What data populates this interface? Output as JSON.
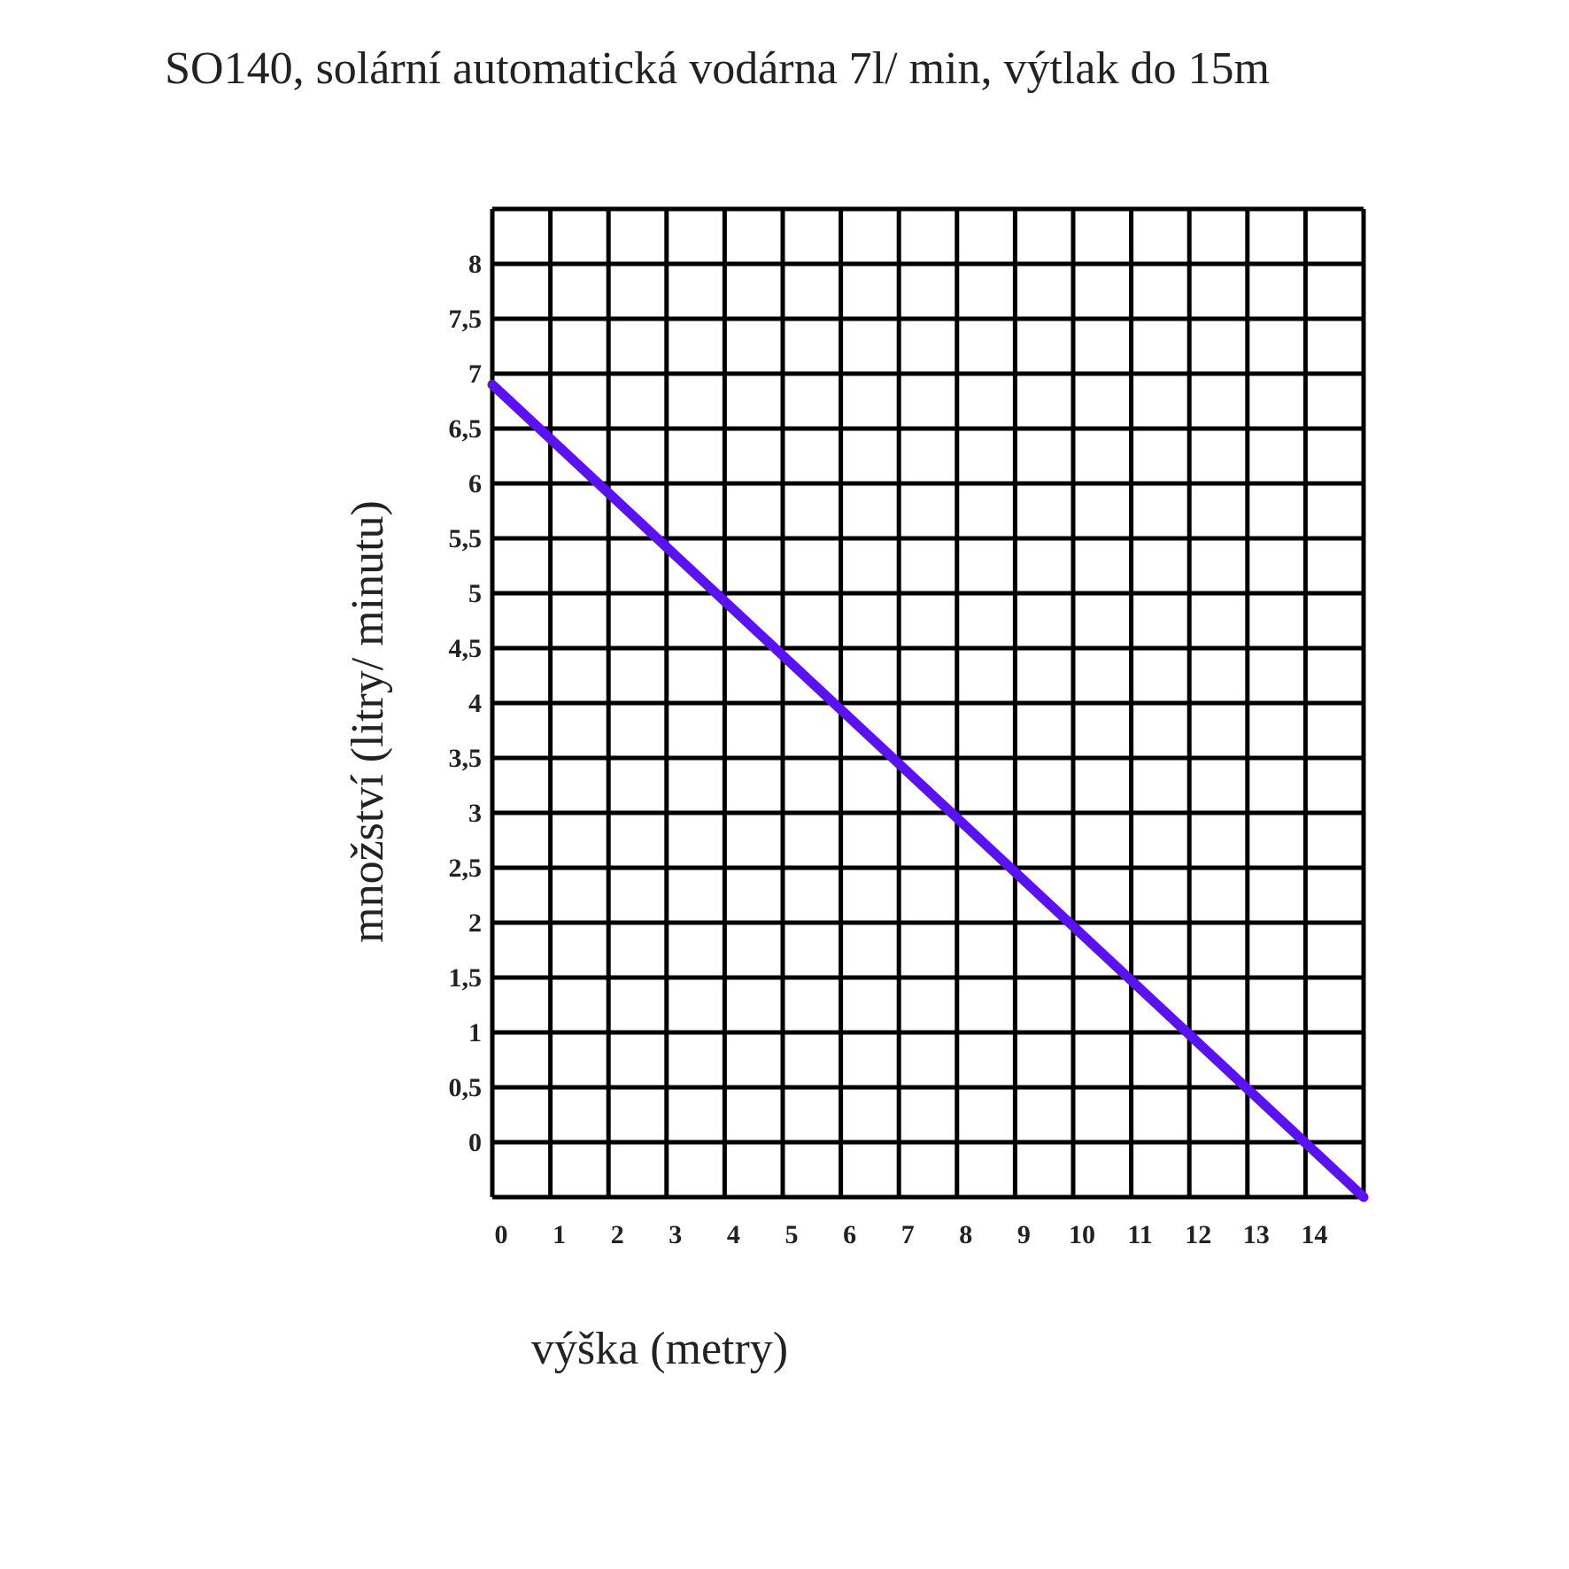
{
  "chart_data": {
    "type": "line",
    "title": "SO140, solární automatická vodárna 7l/ min, výtlak do 15m",
    "xlabel": "výška (metry)",
    "ylabel": "množství (litry/ minutu)",
    "x_ticks": [
      "0",
      "1",
      "2",
      "3",
      "4",
      "5",
      "6",
      "7",
      "8",
      "9",
      "10",
      "11",
      "12",
      "13",
      "14"
    ],
    "y_ticks": [
      "0",
      "0,5",
      "1",
      "1,5",
      "2",
      "2,5",
      "3",
      "3,5",
      "4",
      "4,5",
      "5",
      "5,5",
      "6",
      "6,5",
      "7",
      "7,5",
      "8"
    ],
    "xlim": [
      0,
      15
    ],
    "ylim": [
      -0.5,
      8.5
    ],
    "grid": true,
    "series": [
      {
        "x": [
          0,
          15
        ],
        "y": [
          6.9,
          -0.5
        ]
      }
    ],
    "colors": {
      "line": "#5a12f0",
      "grid": "#000000"
    }
  }
}
